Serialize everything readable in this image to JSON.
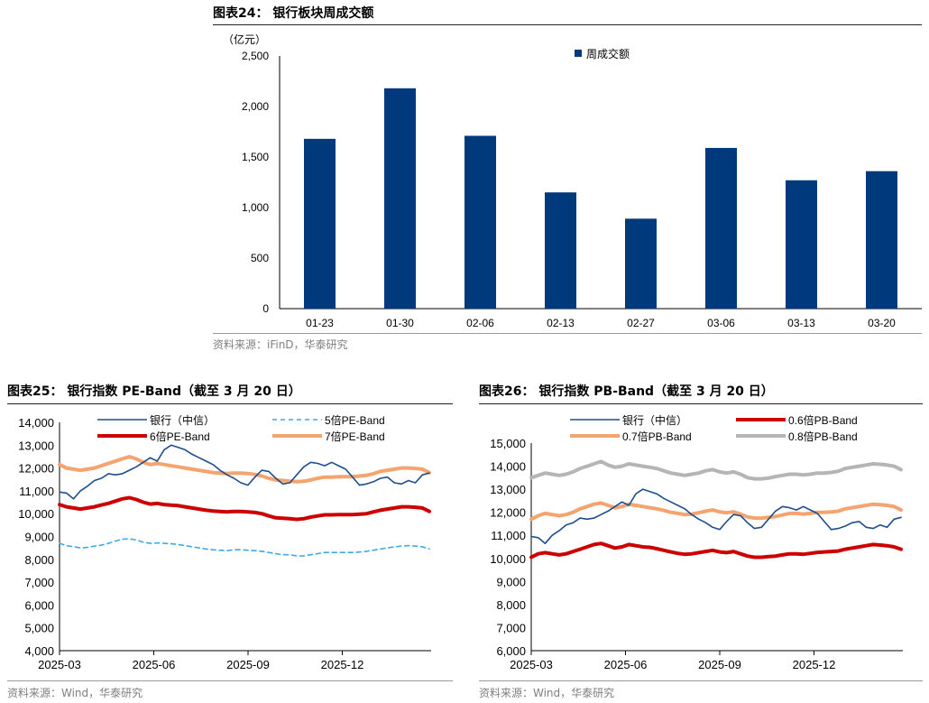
{
  "charts": [
    {
      "title": "图表24：  银行板块周成交额",
      "source": "资料来源：iFinD，华泰研究",
      "unit_label": "（亿元）"
    },
    {
      "title": "图表25：  银行指数 PE-Band（截至 3 月 20 日）",
      "source": "资料来源：Wind，华泰研究"
    },
    {
      "title": "图表26：  银行指数 PB-Band（截至 3 月 20 日）",
      "source": "资料来源：Wind，华泰研究"
    }
  ],
  "colors": {
    "bank": "#1f4e8c",
    "pe5": "#3fa9e6",
    "pe6": "#cc0000",
    "pe7": "#f4a46f",
    "pb06": "#cc0000",
    "pb07": "#f4a46f",
    "pb08": "#b5b5b5",
    "bar": "#003a7d"
  },
  "chart_data": [
    {
      "type": "bar",
      "categories": [
        "01-23",
        "01-30",
        "02-06",
        "02-13",
        "02-27",
        "03-06",
        "03-13",
        "03-20"
      ],
      "series": [
        {
          "name": "周成交额",
          "values": [
            1680,
            2180,
            1710,
            1150,
            890,
            1590,
            1270,
            1360
          ]
        }
      ],
      "ylim": [
        0,
        2500
      ],
      "yticks": [
        "0",
        "500",
        "1,000",
        "1,500",
        "2,000",
        "2,500"
      ],
      "legend": "top-center"
    },
    {
      "type": "line",
      "x_start": "2025-03",
      "x_end": "2026-03-20",
      "xticks": [
        "2025-03",
        "2025-06",
        "2025-09",
        "2025-12"
      ],
      "ylim": [
        4000,
        14000
      ],
      "yticks": [
        "4,000",
        "5,000",
        "6,000",
        "7,000",
        "8,000",
        "9,000",
        "10,000",
        "11,000",
        "12,000",
        "13,000",
        "14,000"
      ],
      "legend": "top",
      "series": [
        {
          "name": "银行（中信）",
          "style": "solid",
          "values": [
            10950,
            10900,
            10650,
            11000,
            11200,
            11450,
            11550,
            11750,
            11700,
            11750,
            11900,
            12050,
            12250,
            12450,
            12300,
            12800,
            13000,
            12900,
            12800,
            12600,
            12450,
            12300,
            12150,
            11900,
            11700,
            11550,
            11350,
            11250,
            11600,
            11900,
            11850,
            11550,
            11300,
            11350,
            11700,
            12050,
            12250,
            12200,
            12100,
            12250,
            12100,
            11950,
            11600,
            11250,
            11300,
            11400,
            11550,
            11600,
            11350,
            11300,
            11450,
            11350,
            11700,
            11780
          ]
        },
        {
          "name": "5倍PE-Band",
          "style": "dashed",
          "values": [
            8700,
            8600,
            8550,
            8500,
            8520,
            8580,
            8620,
            8700,
            8800,
            8880,
            8900,
            8850,
            8750,
            8700,
            8720,
            8700,
            8680,
            8650,
            8600,
            8550,
            8500,
            8450,
            8420,
            8400,
            8380,
            8420,
            8420,
            8400,
            8380,
            8350,
            8300,
            8250,
            8200,
            8200,
            8150,
            8150,
            8200,
            8250,
            8300,
            8300,
            8300,
            8300,
            8300,
            8320,
            8350,
            8400,
            8450,
            8500,
            8550,
            8580,
            8600,
            8580,
            8550,
            8450
          ]
        },
        {
          "name": "6倍PE-Band",
          "style": "solid",
          "values": [
            10400,
            10300,
            10250,
            10200,
            10250,
            10300,
            10380,
            10450,
            10550,
            10650,
            10700,
            10620,
            10500,
            10420,
            10450,
            10400,
            10370,
            10350,
            10300,
            10250,
            10200,
            10150,
            10120,
            10100,
            10080,
            10100,
            10100,
            10080,
            10050,
            10000,
            9900,
            9820,
            9800,
            9780,
            9750,
            9780,
            9850,
            9900,
            9950,
            9950,
            9960,
            9960,
            9960,
            9980,
            10000,
            10080,
            10150,
            10200,
            10250,
            10300,
            10300,
            10280,
            10250,
            10100
          ]
        },
        {
          "name": "7倍PE-Band",
          "style": "solid",
          "values": [
            12150,
            12000,
            11950,
            11900,
            11950,
            12000,
            12100,
            12200,
            12300,
            12400,
            12500,
            12400,
            12250,
            12150,
            12200,
            12150,
            12100,
            12050,
            12000,
            11950,
            11900,
            11850,
            11800,
            11780,
            11760,
            11780,
            11780,
            11760,
            11720,
            11650,
            11550,
            11480,
            11450,
            11420,
            11400,
            11420,
            11480,
            11550,
            11600,
            11600,
            11620,
            11620,
            11620,
            11650,
            11680,
            11750,
            11850,
            11900,
            11950,
            12000,
            12000,
            11980,
            11950,
            11800
          ]
        }
      ]
    },
    {
      "type": "line",
      "x_start": "2025-03",
      "x_end": "2026-03-20",
      "xticks": [
        "2025-03",
        "2025-06",
        "2025-09",
        "2025-12"
      ],
      "ylim": [
        6000,
        15000
      ],
      "yticks": [
        "6,000",
        "7,000",
        "8,000",
        "9,000",
        "10,000",
        "11,000",
        "12,000",
        "13,000",
        "14,000",
        "15,000"
      ],
      "legend": "top",
      "series": [
        {
          "name": "银行（中信）",
          "style": "solid",
          "values": [
            10950,
            10900,
            10650,
            11000,
            11200,
            11450,
            11550,
            11750,
            11700,
            11750,
            11900,
            12050,
            12250,
            12450,
            12300,
            12800,
            13000,
            12900,
            12800,
            12600,
            12450,
            12300,
            12150,
            11900,
            11700,
            11550,
            11350,
            11250,
            11600,
            11900,
            11850,
            11550,
            11300,
            11350,
            11700,
            12050,
            12250,
            12200,
            12100,
            12250,
            12100,
            11950,
            11600,
            11250,
            11300,
            11400,
            11550,
            11600,
            11350,
            11300,
            11450,
            11350,
            11700,
            11780
          ]
        },
        {
          "name": "0.6倍PB-Band",
          "style": "solid",
          "values": [
            10050,
            10200,
            10250,
            10200,
            10150,
            10200,
            10300,
            10400,
            10500,
            10600,
            10650,
            10550,
            10450,
            10500,
            10600,
            10550,
            10500,
            10480,
            10420,
            10350,
            10280,
            10220,
            10180,
            10200,
            10250,
            10300,
            10350,
            10280,
            10250,
            10300,
            10200,
            10100,
            10050,
            10050,
            10080,
            10100,
            10150,
            10200,
            10200,
            10180,
            10220,
            10260,
            10280,
            10300,
            10320,
            10400,
            10450,
            10500,
            10550,
            10600,
            10580,
            10550,
            10500,
            10400
          ]
        },
        {
          "name": "0.7倍PB-Band",
          "style": "solid",
          "values": [
            11700,
            11850,
            11950,
            11900,
            11850,
            11900,
            12000,
            12150,
            12250,
            12350,
            12400,
            12300,
            12200,
            12250,
            12350,
            12300,
            12250,
            12200,
            12150,
            12080,
            12000,
            11950,
            11900,
            11920,
            11980,
            12050,
            12100,
            12020,
            11980,
            12020,
            11920,
            11800,
            11750,
            11750,
            11780,
            11820,
            11880,
            11950,
            11950,
            11920,
            11950,
            12000,
            12000,
            12020,
            12050,
            12150,
            12200,
            12250,
            12300,
            12350,
            12330,
            12300,
            12250,
            12100
          ]
        },
        {
          "name": "0.8倍PB-Band",
          "style": "solid",
          "values": [
            13500,
            13600,
            13700,
            13650,
            13600,
            13650,
            13750,
            13900,
            14000,
            14100,
            14200,
            14050,
            13950,
            14000,
            14100,
            14050,
            14000,
            13950,
            13900,
            13800,
            13700,
            13650,
            13600,
            13650,
            13700,
            13800,
            13850,
            13750,
            13700,
            13750,
            13650,
            13500,
            13450,
            13450,
            13480,
            13550,
            13600,
            13650,
            13650,
            13620,
            13650,
            13700,
            13700,
            13730,
            13780,
            13900,
            13950,
            14000,
            14050,
            14100,
            14080,
            14050,
            14000,
            13850
          ]
        }
      ]
    }
  ]
}
